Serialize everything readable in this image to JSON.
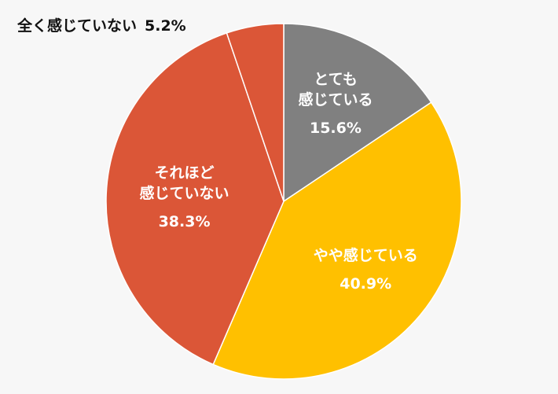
{
  "chart_data": {
    "type": "pie",
    "categories": [
      "とても\n感じている",
      "やや感じている",
      "それほど\n感じていない",
      "全く感じていない"
    ],
    "values": [
      15.6,
      40.9,
      38.3,
      5.2
    ],
    "value_labels": [
      "15.6%",
      "40.9%",
      "38.3%",
      "5.2%"
    ],
    "colors": [
      "#808080",
      "#FFC000",
      "#DB5637",
      "#DB5637"
    ]
  }
}
